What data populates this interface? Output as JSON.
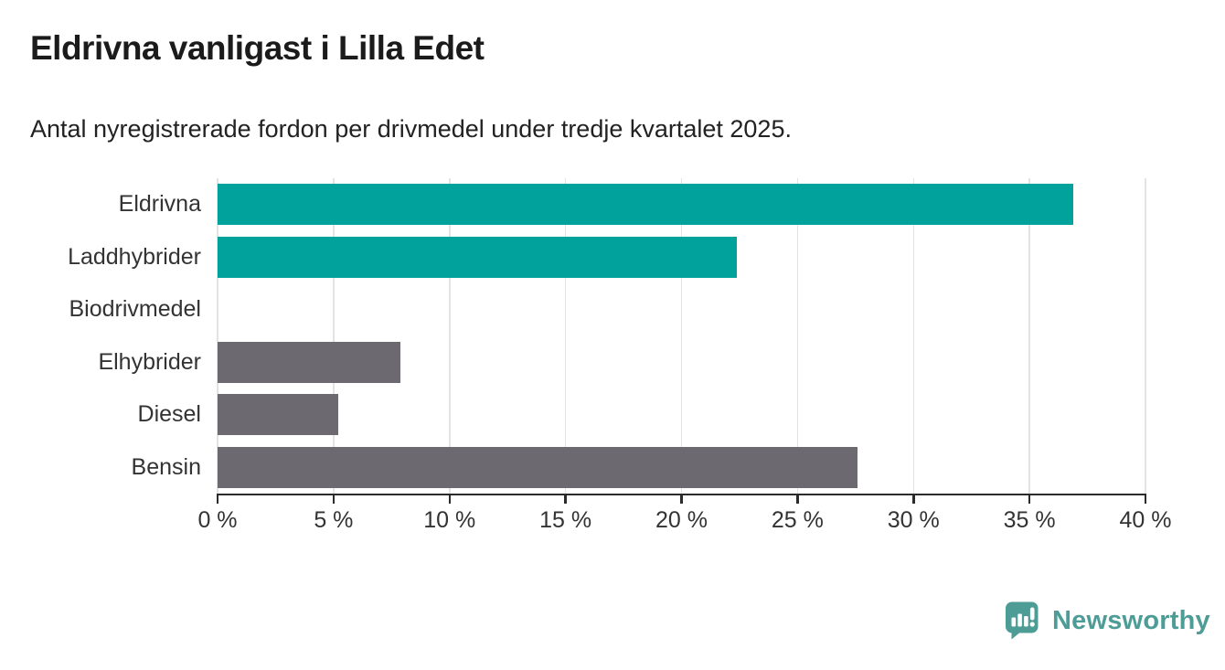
{
  "chart_data": {
    "type": "bar",
    "orientation": "horizontal",
    "title": "Eldrivna vanligast i Lilla Edet",
    "subtitle": "Antal nyregistrerade fordon per drivmedel under tredje kvartalet 2025.",
    "categories": [
      "Eldrivna",
      "Laddhybrider",
      "Biodrivmedel",
      "Elhybrider",
      "Diesel",
      "Bensin"
    ],
    "values": [
      36.9,
      22.4,
      0,
      7.9,
      5.2,
      27.6
    ],
    "unit": "%",
    "bar_colors": [
      "#00a29b",
      "#00a29b",
      "#6d6970",
      "#6d6970",
      "#6d6970",
      "#6d6970"
    ],
    "xlabel": "",
    "ylabel": "",
    "xlim": [
      0,
      40
    ],
    "x_ticks": [
      {
        "value": 0,
        "label": "0 %"
      },
      {
        "value": 5,
        "label": "5 %"
      },
      {
        "value": 10,
        "label": "10 %"
      },
      {
        "value": 15,
        "label": "15 %"
      },
      {
        "value": 20,
        "label": "20 %"
      },
      {
        "value": 25,
        "label": "25 %"
      },
      {
        "value": 30,
        "label": "30 %"
      },
      {
        "value": 35,
        "label": "35 %"
      },
      {
        "value": 40,
        "label": "40 %"
      }
    ],
    "grid": "vertical",
    "legend": "none"
  },
  "footer": {
    "brand": "Newsworthy"
  },
  "colors": {
    "accent_teal": "#00a29b",
    "bar_gray": "#6d6970",
    "logo_teal": "#4d9c96",
    "title_text": "#1b1b1b",
    "axis_text": "#333333",
    "gridline": "#e3e3e3",
    "axis_line": "#2b2b2b",
    "background": "#ffffff"
  }
}
